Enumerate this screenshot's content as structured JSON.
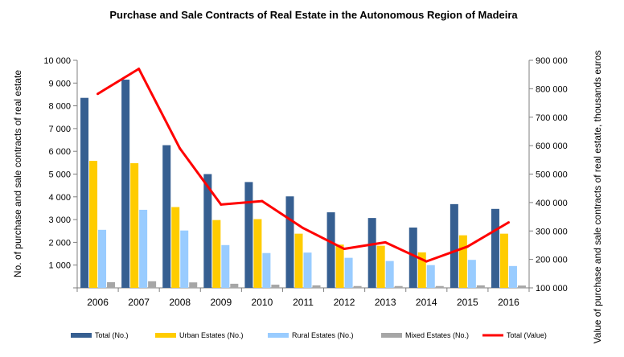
{
  "chart_data": {
    "type": "bar",
    "title": "Purchase and Sale Contracts of Real Estate in the Autonomous Region of Madeira",
    "ylabel": "No. of purchase and sale contracts of real estate",
    "y2label": "Value of purchase and sale contracts of real estate, thousands euros",
    "categories": [
      "2006",
      "2007",
      "2008",
      "2009",
      "2010",
      "2011",
      "2012",
      "2013",
      "2014",
      "2015",
      "2016"
    ],
    "ylim": [
      0,
      10000
    ],
    "y2lim": [
      100000,
      900000
    ],
    "y_ticks": [
      "",
      "1 000",
      "2 000",
      "3 000",
      "4 000",
      "5 000",
      "6 000",
      "7 000",
      "8 000",
      "9 000",
      "10 000"
    ],
    "y2_ticks": [
      "100 000",
      "200 000",
      "300 000",
      "400 000",
      "500 000",
      "600 000",
      "700 000",
      "800 000",
      "900 000"
    ],
    "series": [
      {
        "name": "Total (No.)",
        "type": "bar",
        "axis": "left",
        "color": "#365F91",
        "values": [
          8350,
          9150,
          6270,
          5000,
          4650,
          4020,
          3320,
          3070,
          2650,
          3680,
          3470
        ]
      },
      {
        "name": "Urban Estates (No.)",
        "type": "bar",
        "axis": "left",
        "color": "#FFCC00",
        "values": [
          5580,
          5480,
          3550,
          2980,
          3020,
          2380,
          1900,
          1850,
          1560,
          2310,
          2380
        ]
      },
      {
        "name": "Rural Estates (No.)",
        "type": "bar",
        "axis": "left",
        "color": "#99CCFF",
        "values": [
          2550,
          3430,
          2520,
          1880,
          1530,
          1550,
          1320,
          1180,
          1000,
          1230,
          960
        ]
      },
      {
        "name": "Mixed Estates (No.)",
        "type": "bar",
        "axis": "left",
        "color": "#A6A6A6",
        "values": [
          250,
          290,
          240,
          180,
          140,
          110,
          80,
          80,
          80,
          110,
          100
        ]
      },
      {
        "name": "Total (Value)",
        "type": "line",
        "axis": "right",
        "color": "#FF0000",
        "values": [
          782000,
          870000,
          590000,
          393000,
          405000,
          310000,
          237000,
          260000,
          193000,
          245000,
          330000
        ]
      }
    ],
    "legend_position": "bottom",
    "grid": false
  }
}
